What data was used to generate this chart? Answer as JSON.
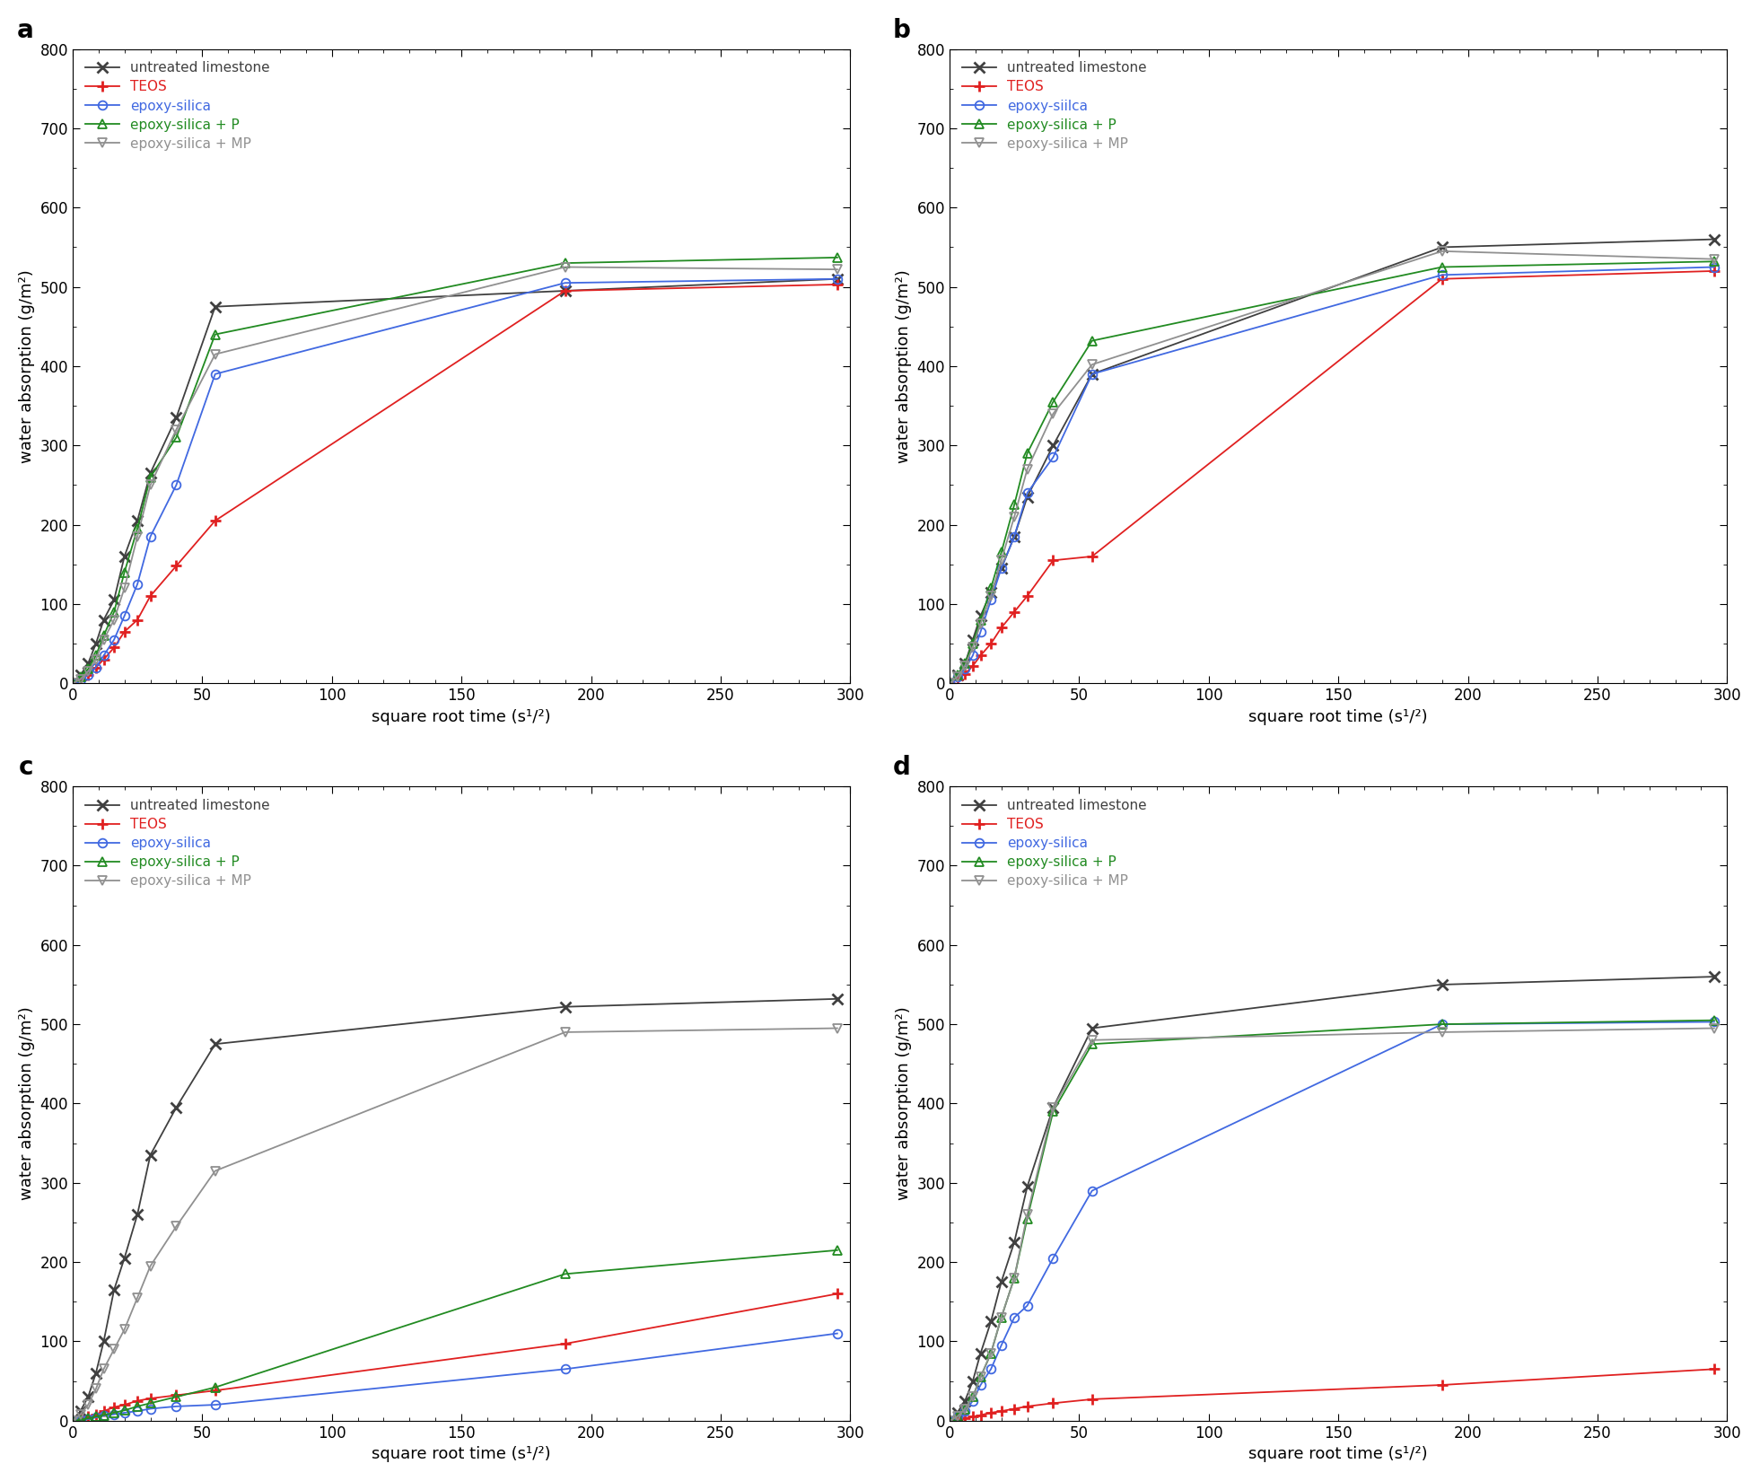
{
  "panels": [
    {
      "label": "a",
      "series": {
        "untreated": {
          "x": [
            0,
            3,
            6,
            9,
            12,
            16,
            20,
            25,
            30,
            40,
            55,
            190,
            295
          ],
          "y": [
            0,
            10,
            25,
            50,
            80,
            105,
            160,
            205,
            265,
            335,
            475,
            495,
            510
          ],
          "color": "#404040",
          "marker": "x",
          "label": "untreated limestone",
          "label_color": "#404040"
        },
        "teos": {
          "x": [
            0,
            3,
            6,
            9,
            12,
            16,
            20,
            25,
            30,
            40,
            55,
            190,
            295
          ],
          "y": [
            0,
            5,
            10,
            20,
            30,
            45,
            65,
            80,
            110,
            148,
            205,
            495,
            503
          ],
          "color": "#e02020",
          "marker": "+",
          "label": "TEOS",
          "label_color": "#e02020"
        },
        "epoxy_silica": {
          "x": [
            0,
            3,
            6,
            9,
            12,
            16,
            20,
            25,
            30,
            40,
            55,
            190,
            295
          ],
          "y": [
            0,
            5,
            10,
            20,
            35,
            55,
            85,
            125,
            185,
            250,
            390,
            505,
            510
          ],
          "color": "#4169e1",
          "marker": "o",
          "label": "epoxy-silica",
          "label_color": "#4169e1"
        },
        "epoxy_silica_p": {
          "x": [
            0,
            3,
            6,
            9,
            12,
            16,
            20,
            25,
            30,
            40,
            55,
            190,
            295
          ],
          "y": [
            0,
            8,
            18,
            35,
            60,
            90,
            140,
            195,
            260,
            310,
            440,
            530,
            537
          ],
          "color": "#228b22",
          "marker": "^",
          "label": "epoxy-silica + P",
          "label_color": "#228b22"
        },
        "epoxy_silica_mp": {
          "x": [
            0,
            3,
            6,
            9,
            12,
            16,
            20,
            25,
            30,
            40,
            55,
            190,
            295
          ],
          "y": [
            0,
            5,
            15,
            30,
            55,
            80,
            120,
            185,
            250,
            320,
            415,
            525,
            522
          ],
          "color": "#909090",
          "marker": "v",
          "label": "epoxy-silica + MP",
          "label_color": "#909090"
        }
      }
    },
    {
      "label": "b",
      "series": {
        "untreated": {
          "x": [
            0,
            3,
            6,
            9,
            12,
            16,
            20,
            25,
            30,
            40,
            55,
            190,
            295
          ],
          "y": [
            0,
            10,
            25,
            55,
            85,
            115,
            145,
            185,
            235,
            300,
            390,
            550,
            560
          ],
          "color": "#404040",
          "marker": "x",
          "label": "untreated limestone",
          "label_color": "#404040"
        },
        "teos": {
          "x": [
            0,
            3,
            6,
            9,
            12,
            16,
            20,
            25,
            30,
            40,
            55,
            190,
            295
          ],
          "y": [
            0,
            5,
            12,
            22,
            35,
            50,
            70,
            90,
            110,
            155,
            160,
            510,
            520
          ],
          "color": "#e02020",
          "marker": "+",
          "label": "TEOS",
          "label_color": "#e02020"
        },
        "epoxy_silica": {
          "x": [
            0,
            3,
            6,
            9,
            12,
            16,
            20,
            25,
            30,
            40,
            55,
            190,
            295
          ],
          "y": [
            0,
            8,
            18,
            35,
            65,
            105,
            145,
            185,
            240,
            285,
            390,
            515,
            525
          ],
          "color": "#4169e1",
          "marker": "o",
          "label": "epoxy-siilca",
          "label_color": "#4169e1"
        },
        "epoxy_silica_p": {
          "x": [
            0,
            3,
            6,
            9,
            12,
            16,
            20,
            25,
            30,
            40,
            55,
            190,
            295
          ],
          "y": [
            0,
            10,
            25,
            50,
            80,
            120,
            165,
            225,
            290,
            355,
            432,
            525,
            532
          ],
          "color": "#228b22",
          "marker": "^",
          "label": "epoxy-silica + P",
          "label_color": "#228b22"
        },
        "epoxy_silica_mp": {
          "x": [
            0,
            3,
            6,
            9,
            12,
            16,
            20,
            25,
            30,
            40,
            55,
            190,
            295
          ],
          "y": [
            0,
            8,
            22,
            45,
            75,
            110,
            155,
            210,
            270,
            340,
            402,
            545,
            535
          ],
          "color": "#909090",
          "marker": "v",
          "label": "epoxy-silica + MP",
          "label_color": "#909090"
        }
      }
    },
    {
      "label": "c",
      "series": {
        "untreated": {
          "x": [
            0,
            3,
            6,
            9,
            12,
            16,
            20,
            25,
            30,
            40,
            55,
            190,
            295
          ],
          "y": [
            0,
            12,
            30,
            60,
            100,
            165,
            205,
            260,
            335,
            395,
            475,
            522,
            532
          ],
          "color": "#404040",
          "marker": "x",
          "label": "untreated limestone",
          "label_color": "#404040"
        },
        "teos": {
          "x": [
            0,
            3,
            6,
            9,
            12,
            16,
            20,
            25,
            30,
            40,
            55,
            190,
            295
          ],
          "y": [
            0,
            2,
            5,
            8,
            12,
            17,
            20,
            25,
            28,
            32,
            38,
            97,
            160
          ],
          "color": "#e02020",
          "marker": "+",
          "label": "TEOS",
          "label_color": "#e02020"
        },
        "epoxy_silica": {
          "x": [
            0,
            3,
            6,
            9,
            12,
            16,
            20,
            25,
            30,
            40,
            55,
            190,
            295
          ],
          "y": [
            0,
            1,
            2,
            4,
            6,
            8,
            10,
            12,
            15,
            18,
            20,
            65,
            110
          ],
          "color": "#4169e1",
          "marker": "o",
          "label": "epoxy-silica",
          "label_color": "#4169e1"
        },
        "epoxy_silica_p": {
          "x": [
            0,
            3,
            6,
            9,
            12,
            16,
            20,
            25,
            30,
            40,
            55,
            190,
            295
          ],
          "y": [
            0,
            1,
            3,
            5,
            7,
            10,
            13,
            18,
            22,
            30,
            42,
            185,
            215
          ],
          "color": "#228b22",
          "marker": "^",
          "label": "epoxy-silica + P",
          "label_color": "#228b22"
        },
        "epoxy_silica_mp": {
          "x": [
            0,
            3,
            6,
            9,
            12,
            16,
            20,
            25,
            30,
            40,
            55,
            190,
            295
          ],
          "y": [
            0,
            8,
            20,
            40,
            65,
            90,
            115,
            155,
            195,
            245,
            315,
            490,
            495
          ],
          "color": "#909090",
          "marker": "v",
          "label": "epoxy-silica + MP",
          "label_color": "#909090"
        }
      }
    },
    {
      "label": "d",
      "series": {
        "untreated": {
          "x": [
            0,
            3,
            6,
            9,
            12,
            16,
            20,
            25,
            30,
            40,
            55,
            190,
            295
          ],
          "y": [
            0,
            10,
            25,
            50,
            85,
            125,
            175,
            225,
            295,
            395,
            495,
            550,
            560
          ],
          "color": "#404040",
          "marker": "x",
          "label": "untreated limestone",
          "label_color": "#404040"
        },
        "teos": {
          "x": [
            0,
            3,
            6,
            9,
            12,
            16,
            20,
            25,
            30,
            40,
            55,
            190,
            295
          ],
          "y": [
            0,
            1,
            3,
            5,
            7,
            10,
            12,
            15,
            18,
            22,
            27,
            45,
            65
          ],
          "color": "#e02020",
          "marker": "+",
          "label": "TEOS",
          "label_color": "#e02020"
        },
        "epoxy_silica": {
          "x": [
            0,
            3,
            6,
            9,
            12,
            16,
            20,
            25,
            30,
            40,
            55,
            190,
            295
          ],
          "y": [
            0,
            5,
            12,
            25,
            45,
            65,
            95,
            130,
            145,
            205,
            290,
            500,
            503
          ],
          "color": "#4169e1",
          "marker": "o",
          "label": "epoxy-silica",
          "label_color": "#4169e1"
        },
        "epoxy_silica_p": {
          "x": [
            0,
            3,
            6,
            9,
            12,
            16,
            20,
            25,
            30,
            40,
            55,
            190,
            295
          ],
          "y": [
            0,
            5,
            15,
            30,
            55,
            85,
            130,
            180,
            255,
            390,
            475,
            500,
            505
          ],
          "color": "#228b22",
          "marker": "^",
          "label": "epoxy-silica + P",
          "label_color": "#228b22"
        },
        "epoxy_silica_mp": {
          "x": [
            0,
            3,
            6,
            9,
            12,
            16,
            20,
            25,
            30,
            40,
            55,
            190,
            295
          ],
          "y": [
            0,
            5,
            15,
            30,
            55,
            85,
            130,
            180,
            260,
            395,
            480,
            490,
            495
          ],
          "color": "#909090",
          "marker": "v",
          "label": "epoxy-silica + MP",
          "label_color": "#909090"
        }
      }
    }
  ],
  "xlabel": "square root time (s¹²)",
  "ylabel": "water absorption (g/m²)",
  "xlim": [
    0,
    300
  ],
  "ylim": [
    0,
    800
  ],
  "yticks": [
    0,
    100,
    200,
    300,
    400,
    500,
    600,
    700,
    800
  ],
  "xticks": [
    0,
    50,
    100,
    150,
    200,
    250,
    300
  ],
  "bg_color": "#ffffff",
  "linewidth": 1.3,
  "markersize": 7
}
